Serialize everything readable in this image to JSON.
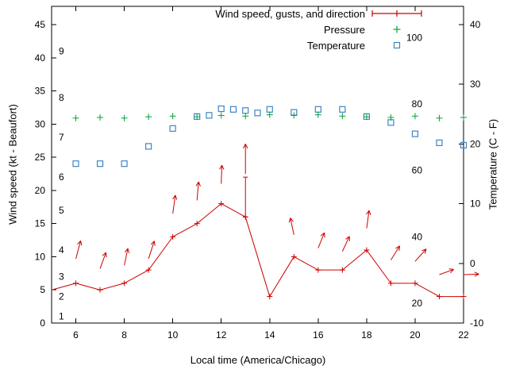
{
  "chart_data": {
    "type": "line",
    "title": "",
    "xlabel": "Local time (America/Chicago)",
    "ylabel_left": "Wind speed (kt - Beaufort)",
    "ylabel_right": "Temperature (C - F)",
    "xlim": [
      5,
      22
    ],
    "ylim_left": [
      0,
      47.75
    ],
    "ylim_right": [
      -10,
      43.06
    ],
    "x_ticks": [
      6,
      8,
      10,
      12,
      14,
      16,
      18,
      20,
      22
    ],
    "y_ticks_left": [
      0,
      5,
      10,
      15,
      20,
      25,
      30,
      35,
      40,
      45
    ],
    "y_ticks_right": [
      -10,
      0,
      10,
      20,
      30,
      40
    ],
    "grid": false,
    "legend_position": "top-right-inside",
    "beaufort_scale": {
      "labels": [
        "1",
        "2",
        "3",
        "4",
        "5",
        "6",
        "7",
        "8",
        "9"
      ],
      "kt": [
        1,
        4,
        7,
        11,
        17,
        22,
        28,
        34,
        41
      ]
    },
    "fahrenheit_scale": {
      "labels": [
        "20",
        "40",
        "60",
        "80",
        "100"
      ],
      "celsius": [
        -6.7,
        4.4,
        15.6,
        26.7,
        37.8
      ]
    },
    "series": {
      "wind": {
        "name": "Wind speed, gusts, and direction",
        "color": "#cc0000",
        "axis": "left",
        "x": [
          5,
          6,
          7,
          8,
          9,
          10,
          11,
          12,
          13,
          14,
          15,
          16,
          17,
          18,
          19,
          20,
          21,
          22
        ],
        "y_kt": [
          5,
          6,
          5,
          6,
          8,
          13,
          15,
          18,
          16,
          4,
          10,
          8,
          8,
          11,
          6,
          6,
          4,
          4
        ],
        "gusts": [
          {
            "x": 13,
            "low": 16,
            "high": 22
          }
        ]
      },
      "pressure": {
        "name": "Pressure",
        "color": "#00a332",
        "axis": "left",
        "x": [
          6,
          7,
          8,
          9,
          10,
          11,
          12,
          13,
          14,
          15,
          16,
          17,
          18,
          19,
          20,
          21,
          22
        ],
        "y": [
          30.9,
          31.0,
          30.9,
          31.1,
          31.2,
          31.1,
          31.3,
          31.2,
          31.4,
          31.3,
          31.4,
          31.2,
          31.1,
          31.0,
          31.2,
          30.9,
          31.0
        ]
      },
      "temperature": {
        "name": "Temperature",
        "color": "#3d85c8",
        "axis": "right",
        "x": [
          6,
          7,
          8,
          9,
          10,
          11,
          11.5,
          12,
          12.5,
          13,
          13.5,
          14,
          15,
          16,
          17,
          18,
          19,
          20,
          21,
          22
        ],
        "celsius": [
          16.7,
          16.7,
          16.7,
          19.6,
          22.6,
          24.6,
          24.8,
          25.9,
          25.8,
          25.6,
          25.2,
          25.8,
          25.3,
          25.8,
          25.8,
          24.6,
          23.6,
          21.7,
          20.2,
          19.8
        ]
      }
    },
    "wind_arrows": [
      {
        "x": 6,
        "base_kt": 9.7,
        "angle_deg": 15,
        "len_kt": 2.8
      },
      {
        "x": 7,
        "base_kt": 8.2,
        "angle_deg": 20,
        "len_kt": 2.6
      },
      {
        "x": 8,
        "base_kt": 8.7,
        "angle_deg": 12,
        "len_kt": 2.6
      },
      {
        "x": 9,
        "base_kt": 9.7,
        "angle_deg": 18,
        "len_kt": 2.8
      },
      {
        "x": 10,
        "base_kt": 16.5,
        "angle_deg": 8,
        "len_kt": 2.8
      },
      {
        "x": 11,
        "base_kt": 18.5,
        "angle_deg": 5,
        "len_kt": 2.8
      },
      {
        "x": 12,
        "base_kt": 21.0,
        "angle_deg": 2,
        "len_kt": 2.8
      },
      {
        "x": 13,
        "base_kt": 22.5,
        "angle_deg": 0,
        "len_kt": 4.5
      },
      {
        "x": 15,
        "base_kt": 13.3,
        "angle_deg": -12,
        "len_kt": 2.6
      },
      {
        "x": 16,
        "base_kt": 11.3,
        "angle_deg": 22,
        "len_kt": 2.5
      },
      {
        "x": 17,
        "base_kt": 10.8,
        "angle_deg": 25,
        "len_kt": 2.5
      },
      {
        "x": 18,
        "base_kt": 14.3,
        "angle_deg": 8,
        "len_kt": 2.7
      },
      {
        "x": 19,
        "base_kt": 9.5,
        "angle_deg": 32,
        "len_kt": 2.5
      },
      {
        "x": 20,
        "base_kt": 9.3,
        "angle_deg": 42,
        "len_kt": 2.5
      },
      {
        "x": 21,
        "base_kt": 7.3,
        "angle_deg": 70,
        "len_kt": 2.3
      },
      {
        "x": 22,
        "base_kt": 7.3,
        "angle_deg": 88,
        "len_kt": 2.3
      }
    ],
    "legend": {
      "entries": [
        {
          "label": "Wind speed, gusts, and direction",
          "marker": "errorbar-line-sample",
          "color": "#cc0000"
        },
        {
          "label": "Pressure",
          "marker": "plus",
          "color": "#00a332"
        },
        {
          "label": "Temperature",
          "marker": "open-square",
          "color": "#3d85c8"
        }
      ]
    }
  }
}
